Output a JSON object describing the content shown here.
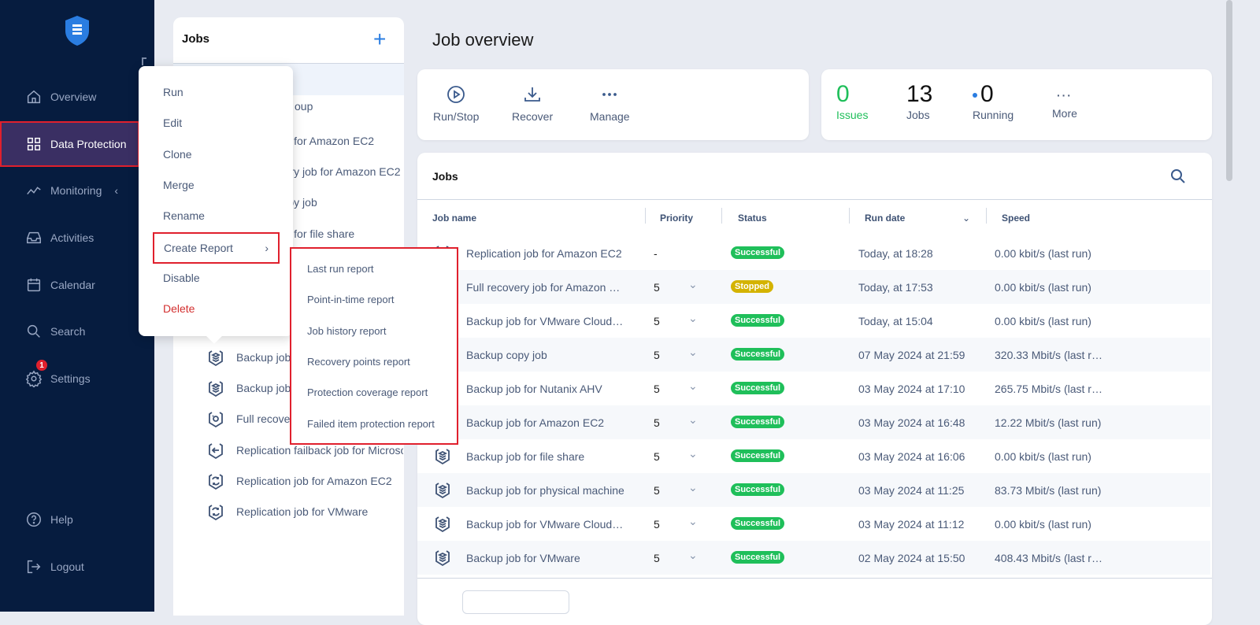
{
  "sidebar": {
    "items": [
      {
        "label": "Overview",
        "icon": "home-icon"
      },
      {
        "label": "Data Protection",
        "icon": "grid-icon",
        "active": true
      },
      {
        "label": "Monitoring",
        "icon": "chart-line-icon"
      },
      {
        "label": "Activities",
        "icon": "inbox-icon"
      },
      {
        "label": "Calendar",
        "icon": "calendar-icon"
      },
      {
        "label": "Search",
        "icon": "search-icon"
      },
      {
        "label": "Settings",
        "icon": "gear-icon",
        "badge": "1"
      }
    ],
    "help": "Help",
    "logout": "Logout"
  },
  "jobs_panel": {
    "title": "Jobs",
    "items": [
      {
        "label": "",
        "type": "group"
      },
      {
        "label": "oup",
        "type": "group"
      },
      {
        "label": "Backup job for Amazon EC2",
        "type": "backup"
      },
      {
        "label": "Full recovery job for Amazon EC2",
        "type": "recovery"
      },
      {
        "label": "Backup copy job",
        "type": "backup"
      },
      {
        "label": "Backup job for file share",
        "type": "backup"
      },
      {
        "label": "",
        "type": "backup"
      },
      {
        "label": "",
        "type": "backup"
      },
      {
        "label": "",
        "type": "backup"
      },
      {
        "label": "Backup job",
        "type": "backup"
      },
      {
        "label": "Backup job",
        "type": "backup"
      },
      {
        "label": "Full recove",
        "type": "recovery"
      },
      {
        "label": "Replication failback job for Microso",
        "type": "failback"
      },
      {
        "label": "Replication job for Amazon EC2",
        "type": "replication"
      },
      {
        "label": "Replication job for VMware",
        "type": "replication"
      }
    ]
  },
  "context_menu": {
    "items": [
      "Run",
      "Edit",
      "Clone",
      "Merge",
      "Rename",
      "Create Report",
      "Disable",
      "Delete"
    ],
    "submenu": [
      "Last run report",
      "Point-in-time report",
      "Job history report",
      "Recovery points report",
      "Protection coverage report",
      "Failed item protection report"
    ]
  },
  "page_title": "Job overview",
  "actions": {
    "run_stop": "Run/Stop",
    "recover": "Recover",
    "manage": "Manage"
  },
  "stats": {
    "issues": {
      "value": "0",
      "label": "Issues"
    },
    "jobs": {
      "value": "13",
      "label": "Jobs"
    },
    "running": {
      "value": "0",
      "label": "Running"
    },
    "more": "More"
  },
  "jobs_table": {
    "title": "Jobs",
    "columns": [
      "Job name",
      "Priority",
      "Status",
      "Run date",
      "Speed"
    ],
    "status_colors": {
      "Successful": "#1fbf5a",
      "Stopped": "#d4b300"
    },
    "rows": [
      {
        "name": "Replication job for Amazon EC2",
        "priority": "-",
        "status": "Successful",
        "date": "Today, at 18:28",
        "speed": "0.00 kbit/s (last run)"
      },
      {
        "name": "Full recovery job for Amazon …",
        "priority": "5",
        "status": "Stopped",
        "date": "Today, at 17:53",
        "speed": "0.00 kbit/s (last run)"
      },
      {
        "name": "Backup job for VMware Cloud…",
        "priority": "5",
        "status": "Successful",
        "date": "Today, at 15:04",
        "speed": "0.00 kbit/s (last run)"
      },
      {
        "name": "Backup copy job",
        "priority": "5",
        "status": "Successful",
        "date": "07 May 2024 at 21:59",
        "speed": "320.33 Mbit/s (last r…"
      },
      {
        "name": "Backup job for Nutanix AHV",
        "priority": "5",
        "status": "Successful",
        "date": "03 May 2024 at 17:10",
        "speed": "265.75 Mbit/s (last r…"
      },
      {
        "name": "Backup job for Amazon EC2",
        "priority": "5",
        "status": "Successful",
        "date": "03 May 2024 at 16:48",
        "speed": "12.22 Mbit/s (last run)"
      },
      {
        "name": "Backup job for file share",
        "priority": "5",
        "status": "Successful",
        "date": "03 May 2024 at 16:06",
        "speed": "0.00 kbit/s (last run)"
      },
      {
        "name": "Backup job for physical machine",
        "priority": "5",
        "status": "Successful",
        "date": "03 May 2024 at 11:25",
        "speed": "83.73 Mbit/s (last run)"
      },
      {
        "name": "Backup job for VMware Cloud…",
        "priority": "5",
        "status": "Successful",
        "date": "03 May 2024 at 11:12",
        "speed": "0.00 kbit/s (last run)"
      },
      {
        "name": "Backup job for VMware",
        "priority": "5",
        "status": "Successful",
        "date": "02 May 2024 at 15:50",
        "speed": "408.43 Mbit/s (last r…"
      }
    ]
  }
}
